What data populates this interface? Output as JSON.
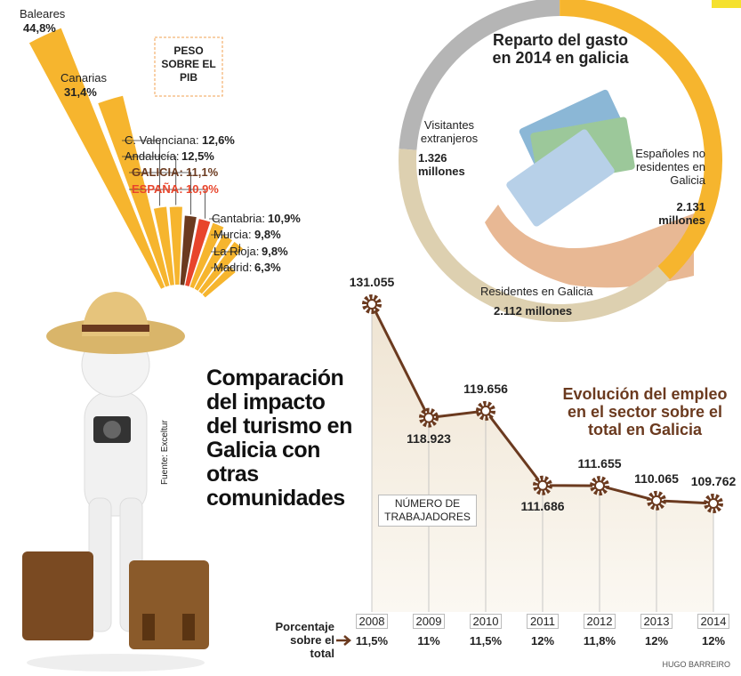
{
  "credit": "HUGO BARREIRO",
  "chart_data": [
    {
      "type": "fan",
      "title": "Comparación del impacto del turismo en Galicia con otras comunidades",
      "subtitle": "PESO SOBRE EL PIB",
      "source": "Fuente: Exceltur",
      "categories": [
        "Baleares",
        "Canarias",
        "C. Valenciana:",
        "Andalucía:",
        "GALICIA:",
        "ESPAÑA:",
        "Cantabria:",
        "Murcia:",
        "La Rioja:",
        "Madrid:"
      ],
      "values": [
        44.8,
        31.4,
        12.6,
        12.5,
        11.1,
        10.9,
        10.9,
        9.8,
        9.8,
        6.3
      ],
      "value_labels": [
        "44,8%",
        "31,4%",
        "12,6%",
        "12,5%",
        "11,1%",
        "10,9%",
        "10,9%",
        "9,8%",
        "9,8%",
        "6,3%"
      ],
      "color": "#f6b52e",
      "colors": [
        "#f6b52e",
        "#f6b52e",
        "#f6b52e",
        "#f6b52e",
        "#6b3a1f",
        "#e8452c",
        "#f6b52e",
        "#f6b52e",
        "#f6b52e",
        "#f6b52e"
      ]
    },
    {
      "type": "donut",
      "title": "Reparto del gasto en 2014 en galicia",
      "categories": [
        "Visitantes extranjeros",
        "Españoles no residentes en Galicia",
        "Residentes en Galicia"
      ],
      "values": [
        1326,
        2131,
        2112
      ],
      "value_labels": [
        "1.326 millones",
        "2.131 millones",
        "2.112 millones"
      ],
      "colors": [
        "#b5b5b5",
        "#f6b52e",
        "#ddd0b0"
      ]
    },
    {
      "type": "line",
      "title": "Evolución del empleo en el sector sobre el total en Galicia",
      "annotation": "NÚMERO DE TRABAJADORES",
      "categories": [
        "2008",
        "2009",
        "2010",
        "2011",
        "2012",
        "2013",
        "2014"
      ],
      "values": [
        131055,
        118923,
        119656,
        111686,
        111655,
        110065,
        109762
      ],
      "value_labels": [
        "131.055",
        "118.923",
        "119.656",
        "111.686",
        "111.655",
        "110.065",
        "109.762"
      ],
      "color": "#6b3a1f",
      "share_label": "Porcentaje sobre el total",
      "share_values": [
        11.5,
        11,
        11.5,
        12,
        11.8,
        12,
        12
      ],
      "share_labels": [
        "11,5%",
        "11%",
        "11,5%",
        "12%",
        "11,8%",
        "12%",
        "12%"
      ]
    }
  ]
}
